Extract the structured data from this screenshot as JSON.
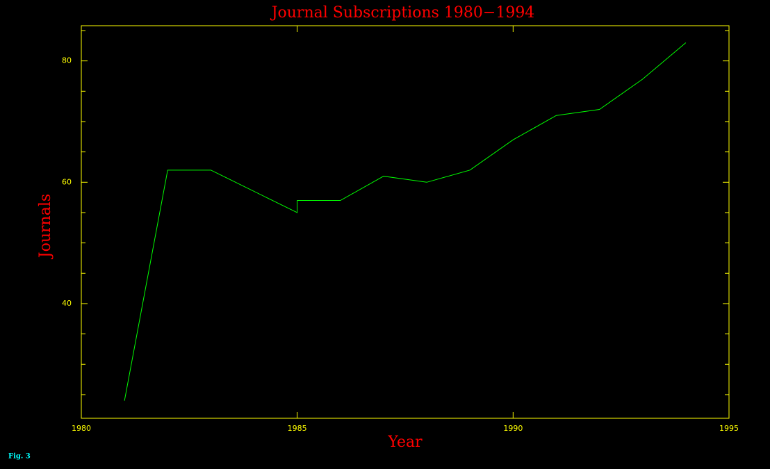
{
  "chart_data": {
    "type": "line",
    "title": "Journal Subscriptions 1980−1994",
    "xlabel": "Year",
    "ylabel": "Journals",
    "caption": "Fig. 3",
    "x": [
      1981,
      1982,
      1983,
      1985,
      1985,
      1986,
      1987,
      1988,
      1989,
      1990,
      1991,
      1992,
      1993,
      1994
    ],
    "series": [
      {
        "color": "#00ff00",
        "values": [
          24,
          62,
          62,
          55,
          57,
          57,
          61,
          60,
          62,
          67,
          71,
          72,
          77,
          83
        ]
      }
    ],
    "xlim": [
      1980,
      1995
    ],
    "ylim": [
      21.1,
      85.8
    ],
    "xticks": [
      1980,
      1985,
      1990,
      1995
    ],
    "yticks": [
      40,
      60,
      80
    ],
    "yminorticks": [
      25,
      30,
      35,
      45,
      50,
      55,
      65,
      70,
      75,
      85
    ],
    "axis_color": "#ffff00",
    "label_color": "#ff0000",
    "caption_color": "#00ffff"
  }
}
